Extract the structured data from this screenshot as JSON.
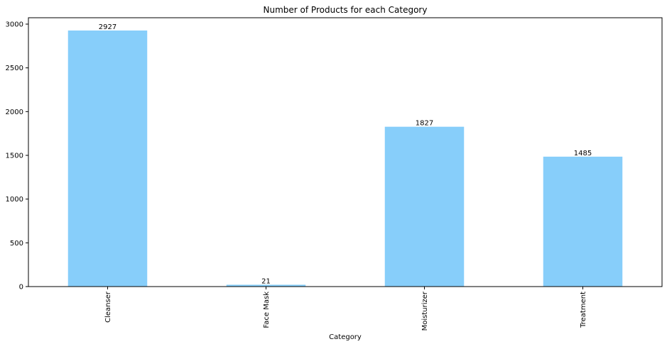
{
  "chart_data": {
    "type": "bar",
    "title": "Number of Products for each Category",
    "xlabel": "Category",
    "ylabel": "",
    "categories": [
      "Cleanser",
      "Face Mask",
      "Moisturizer",
      "Treatment"
    ],
    "values": [
      2927,
      21,
      1827,
      1485
    ],
    "data_labels": [
      "2927",
      "21",
      "1827",
      "1485"
    ],
    "ylim": [
      0,
      3073
    ],
    "yticks": [
      0,
      500,
      1000,
      1500,
      2000,
      2500,
      3000
    ],
    "ytick_labels": [
      "0",
      "500",
      "1000",
      "1500",
      "2000",
      "2500",
      "3000"
    ],
    "xtick_rotation": 90,
    "bar_color": "#87CEFA",
    "grid": false,
    "legend": "none"
  }
}
